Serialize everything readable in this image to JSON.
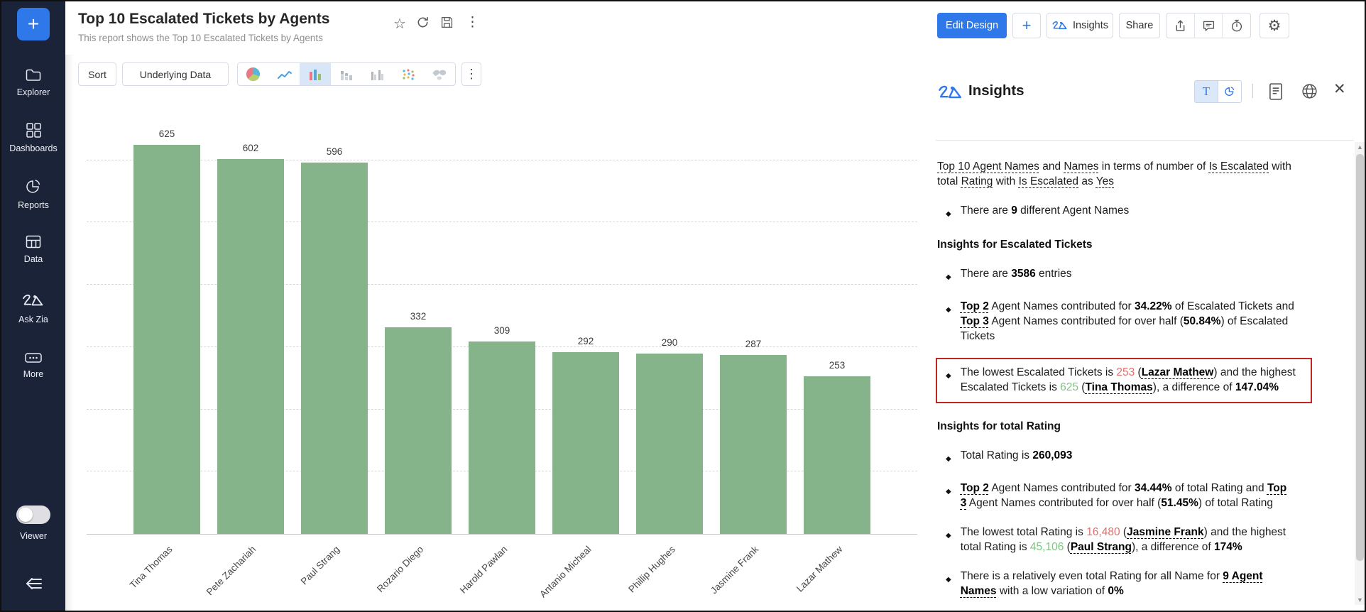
{
  "colors": {
    "accent": "#2e78ea",
    "sidebar_bg": "#1a2338",
    "bar_color": "#85b48a",
    "red_text": "#e0706d",
    "green_text": "#7cc47e",
    "highlight_border": "#c3261f"
  },
  "sidebar": {
    "plus_label": "+",
    "items": [
      {
        "label": "Explorer",
        "icon": "folder-icon"
      },
      {
        "label": "Dashboards",
        "icon": "grid-icon"
      },
      {
        "label": "Reports",
        "icon": "pie-icon"
      },
      {
        "label": "Data",
        "icon": "table-icon"
      },
      {
        "label": "Ask Zia",
        "icon": "zia-icon"
      },
      {
        "label": "More",
        "icon": "ellipsis-icon"
      }
    ],
    "viewer_label": "Viewer",
    "viewer_state": "off",
    "collapse_icon": "collapse-arrow-icon"
  },
  "header": {
    "title": "Top 10 Escalated Tickets by Agents",
    "subtitle": "This report shows the Top 10 Escalated Tickets by Agents",
    "title_icons": [
      "star-icon",
      "refresh-icon",
      "save-icon",
      "more-vertical-icon"
    ],
    "actions": {
      "edit_design": "Edit Design",
      "add": "+",
      "insights": "Insights",
      "share": "Share",
      "icon_buttons": [
        "export-icon",
        "comment-icon",
        "alarm-icon",
        "gear-icon"
      ]
    }
  },
  "toolbar": {
    "sort": "Sort",
    "underlying_data": "Underlying Data",
    "chart_types": [
      "pie-chart",
      "line-chart",
      "bar-chart",
      "stacked-bar-chart",
      "clustered-bar-chart",
      "scatter-plot",
      "geo-map"
    ],
    "selected_chart": "bar-chart",
    "more": "more-vertical-icon"
  },
  "chart_data": {
    "type": "bar",
    "title": "",
    "xlabel": "",
    "ylabel": "",
    "categories": [
      "Tina Thomas",
      "Pete Zachariah",
      "Paul Strang",
      "Rozario Diego",
      "Harold Pawlan",
      "Antanio Micheal",
      "Phillip Hughes",
      "Jasmine Frank",
      "Lazar Mathew"
    ],
    "values": [
      625,
      602,
      596,
      332,
      309,
      292,
      290,
      287,
      253
    ],
    "ylim": [
      0,
      700
    ],
    "gridline_interval": 100,
    "grid": "dashed-horizontal",
    "data_labels": true,
    "bar_color": "#85b48a",
    "legend": "none"
  },
  "insights_panel": {
    "title": "Insights",
    "toolbar": {
      "text_view": "T",
      "chart_view_icon": "pie-view-icon",
      "doc_icon": "document-icon",
      "globe_icon": "globe-icon",
      "close_icon": "close-icon"
    },
    "intro_segments": [
      {
        "t": "Top 10 Agent Names",
        "s": "u"
      },
      {
        "t": " and ",
        "s": ""
      },
      {
        "t": "Names",
        "s": "u"
      },
      {
        "t": " in terms of number of ",
        "s": ""
      },
      {
        "t": "Is Escalated",
        "s": "u"
      },
      {
        "t": " with total ",
        "s": ""
      },
      {
        "t": "Rating",
        "s": "u"
      },
      {
        "t": " with ",
        "s": ""
      },
      {
        "t": "Is Escalated",
        "s": "u"
      },
      {
        "t": " as ",
        "s": ""
      },
      {
        "t": "Yes",
        "s": "u"
      }
    ],
    "blocks": [
      {
        "type": "bullet",
        "segments": [
          {
            "t": "There are ",
            "s": ""
          },
          {
            "t": "9",
            "s": "b"
          },
          {
            "t": " different Agent Names",
            "s": ""
          }
        ]
      },
      {
        "type": "heading",
        "text": "Insights for Escalated Tickets"
      },
      {
        "type": "bullet",
        "segments": [
          {
            "t": "There are ",
            "s": ""
          },
          {
            "t": "3586",
            "s": "b"
          },
          {
            "t": " entries",
            "s": ""
          }
        ]
      },
      {
        "type": "bullet",
        "segments": [
          {
            "t": "Top 2",
            "s": "bu"
          },
          {
            "t": " Agent Names contributed for ",
            "s": ""
          },
          {
            "t": "34.22%",
            "s": "b"
          },
          {
            "t": " of Escalated Tickets and ",
            "s": ""
          },
          {
            "t": "Top 3",
            "s": "bu"
          },
          {
            "t": " Agent Names contributed for over half (",
            "s": ""
          },
          {
            "t": "50.84%",
            "s": "b"
          },
          {
            "t": ") of Escalated Tickets",
            "s": ""
          }
        ]
      },
      {
        "type": "bullet",
        "highlighted": true,
        "segments": [
          {
            "t": "The lowest Escalated Tickets is ",
            "s": ""
          },
          {
            "t": "253",
            "s": "red"
          },
          {
            "t": " (",
            "s": ""
          },
          {
            "t": "Lazar Mathew",
            "s": "bu"
          },
          {
            "t": ") and the highest Escalated Tickets is ",
            "s": ""
          },
          {
            "t": "625",
            "s": "green"
          },
          {
            "t": " (",
            "s": ""
          },
          {
            "t": "Tina Thomas",
            "s": "bu"
          },
          {
            "t": "), a difference of ",
            "s": ""
          },
          {
            "t": "147.04%",
            "s": "b"
          }
        ]
      },
      {
        "type": "heading",
        "text": "Insights for total Rating"
      },
      {
        "type": "bullet",
        "segments": [
          {
            "t": "Total Rating is ",
            "s": ""
          },
          {
            "t": "260,093",
            "s": "b"
          }
        ]
      },
      {
        "type": "bullet",
        "segments": [
          {
            "t": "Top 2",
            "s": "bu"
          },
          {
            "t": " Agent Names contributed for ",
            "s": ""
          },
          {
            "t": "34.44%",
            "s": "b"
          },
          {
            "t": " of total Rating and ",
            "s": ""
          },
          {
            "t": "Top 3",
            "s": "bu"
          },
          {
            "t": " Agent Names contributed for over half (",
            "s": ""
          },
          {
            "t": "51.45%",
            "s": "b"
          },
          {
            "t": ") of total Rating",
            "s": ""
          }
        ]
      },
      {
        "type": "bullet",
        "segments": [
          {
            "t": "The lowest total Rating is ",
            "s": ""
          },
          {
            "t": "16,480",
            "s": "red"
          },
          {
            "t": " (",
            "s": ""
          },
          {
            "t": "Jasmine Frank",
            "s": "bu"
          },
          {
            "t": ") and the highest total Rating is ",
            "s": ""
          },
          {
            "t": "45,106",
            "s": "green"
          },
          {
            "t": " (",
            "s": ""
          },
          {
            "t": "Paul Strang",
            "s": "bu"
          },
          {
            "t": "), a difference of ",
            "s": ""
          },
          {
            "t": "174%",
            "s": "b"
          }
        ]
      },
      {
        "type": "bullet",
        "segments": [
          {
            "t": "There is a relatively even total Rating for all Name for ",
            "s": ""
          },
          {
            "t": "9 Agent Names",
            "s": "bu"
          },
          {
            "t": " with a low variation of ",
            "s": ""
          },
          {
            "t": "0%",
            "s": "b"
          }
        ]
      }
    ],
    "scrollbar": {
      "up": "▲",
      "down": "▼"
    }
  }
}
